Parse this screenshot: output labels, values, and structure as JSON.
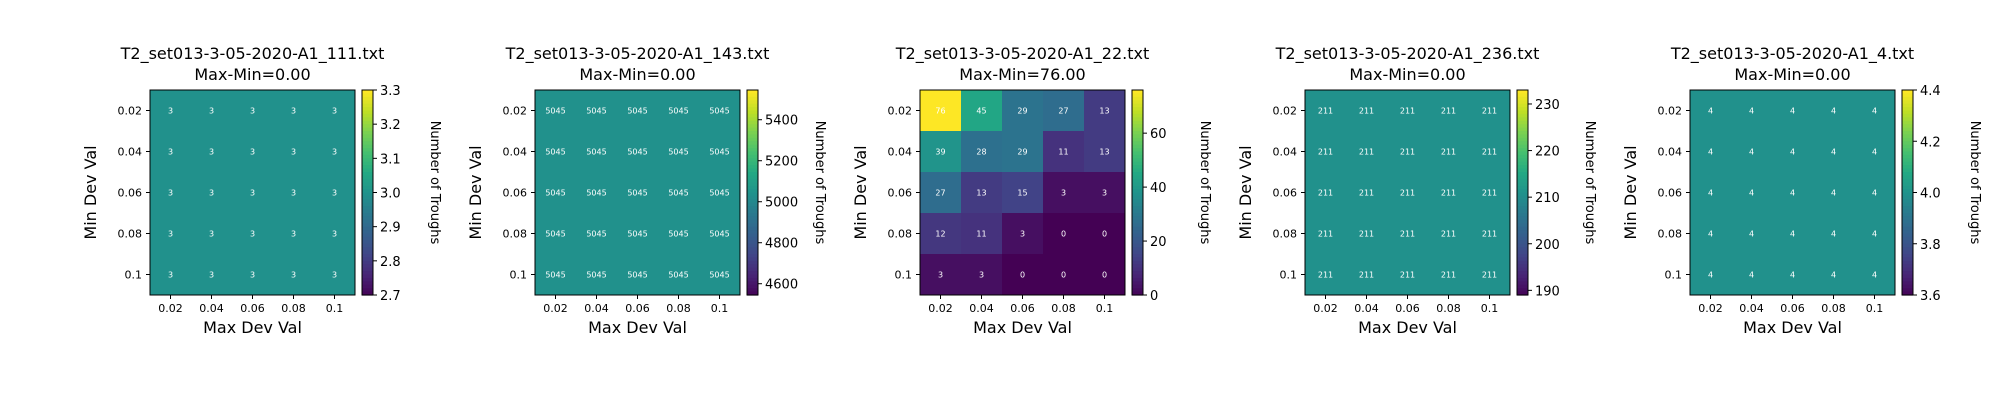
{
  "chart_data": [
    {
      "type": "heatmap",
      "title": "T2_set013-3-05-2020-A1_111.txt",
      "subtitle": "Max-Min=0.00",
      "xlabel": "Max Dev Val",
      "ylabel": "Min Dev Val",
      "colorbar_label": "Number of Troughs",
      "x_ticks": [
        "0.02",
        "0.04",
        "0.06",
        "0.08",
        "0.1"
      ],
      "y_ticks": [
        "0.02",
        "0.04",
        "0.06",
        "0.08",
        "0.1"
      ],
      "vmin": 2.7,
      "vmax": 3.3,
      "colorbar_ticks": [
        "2.7",
        "2.8",
        "2.9",
        "3.0",
        "3.1",
        "3.2",
        "3.3"
      ],
      "values": [
        [
          3,
          3,
          3,
          3,
          3
        ],
        [
          3,
          3,
          3,
          3,
          3
        ],
        [
          3,
          3,
          3,
          3,
          3
        ],
        [
          3,
          3,
          3,
          3,
          3
        ],
        [
          3,
          3,
          3,
          3,
          3
        ]
      ]
    },
    {
      "type": "heatmap",
      "title": "T2_set013-3-05-2020-A1_143.txt",
      "subtitle": "Max-Min=0.00",
      "xlabel": "Max Dev Val",
      "ylabel": "Min Dev Val",
      "colorbar_label": "Number of Troughs",
      "x_ticks": [
        "0.02",
        "0.04",
        "0.06",
        "0.08",
        "0.1"
      ],
      "y_ticks": [
        "0.02",
        "0.04",
        "0.06",
        "0.08",
        "0.1"
      ],
      "vmin": 4545,
      "vmax": 5545,
      "colorbar_ticks": [
        "4600",
        "4800",
        "5000",
        "5200",
        "5400"
      ],
      "values": [
        [
          5045,
          5045,
          5045,
          5045,
          5045
        ],
        [
          5045,
          5045,
          5045,
          5045,
          5045
        ],
        [
          5045,
          5045,
          5045,
          5045,
          5045
        ],
        [
          5045,
          5045,
          5045,
          5045,
          5045
        ],
        [
          5045,
          5045,
          5045,
          5045,
          5045
        ]
      ]
    },
    {
      "type": "heatmap",
      "title": "T2_set013-3-05-2020-A1_22.txt",
      "subtitle": "Max-Min=76.00",
      "xlabel": "Max Dev Val",
      "ylabel": "Min Dev Val",
      "colorbar_label": "Number of Troughs",
      "x_ticks": [
        "0.02",
        "0.04",
        "0.06",
        "0.08",
        "0.1"
      ],
      "y_ticks": [
        "0.02",
        "0.04",
        "0.06",
        "0.08",
        "0.1"
      ],
      "vmin": 0,
      "vmax": 76,
      "colorbar_ticks": [
        "0",
        "20",
        "40",
        "60"
      ],
      "values": [
        [
          76,
          45,
          29,
          27,
          13
        ],
        [
          39,
          28,
          29,
          11,
          13
        ],
        [
          27,
          13,
          15,
          3,
          3
        ],
        [
          12,
          11,
          3,
          0,
          0
        ],
        [
          3,
          3,
          0,
          0,
          0
        ]
      ]
    },
    {
      "type": "heatmap",
      "title": "T2_set013-3-05-2020-A1_236.txt",
      "subtitle": "Max-Min=0.00",
      "xlabel": "Max Dev Val",
      "ylabel": "Min Dev Val",
      "colorbar_label": "Number of Troughs",
      "x_ticks": [
        "0.02",
        "0.04",
        "0.06",
        "0.08",
        "0.1"
      ],
      "y_ticks": [
        "0.02",
        "0.04",
        "0.06",
        "0.08",
        "0.1"
      ],
      "vmin": 189,
      "vmax": 233,
      "colorbar_ticks": [
        "190",
        "200",
        "210",
        "220",
        "230"
      ],
      "values": [
        [
          211,
          211,
          211,
          211,
          211
        ],
        [
          211,
          211,
          211,
          211,
          211
        ],
        [
          211,
          211,
          211,
          211,
          211
        ],
        [
          211,
          211,
          211,
          211,
          211
        ],
        [
          211,
          211,
          211,
          211,
          211
        ]
      ]
    },
    {
      "type": "heatmap",
      "title": "T2_set013-3-05-2020-A1_4.txt",
      "subtitle": "Max-Min=0.00",
      "xlabel": "Max Dev Val",
      "ylabel": "Min Dev Val",
      "colorbar_label": "Number of Troughs",
      "x_ticks": [
        "0.02",
        "0.04",
        "0.06",
        "0.08",
        "0.1"
      ],
      "y_ticks": [
        "0.02",
        "0.04",
        "0.06",
        "0.08",
        "0.1"
      ],
      "vmin": 3.6,
      "vmax": 4.4,
      "colorbar_ticks": [
        "3.6",
        "3.8",
        "4.0",
        "4.2",
        "4.4"
      ],
      "values": [
        [
          4,
          4,
          4,
          4,
          4
        ],
        [
          4,
          4,
          4,
          4,
          4
        ],
        [
          4,
          4,
          4,
          4,
          4
        ],
        [
          4,
          4,
          4,
          4,
          4
        ],
        [
          4,
          4,
          4,
          4,
          4
        ]
      ]
    }
  ]
}
